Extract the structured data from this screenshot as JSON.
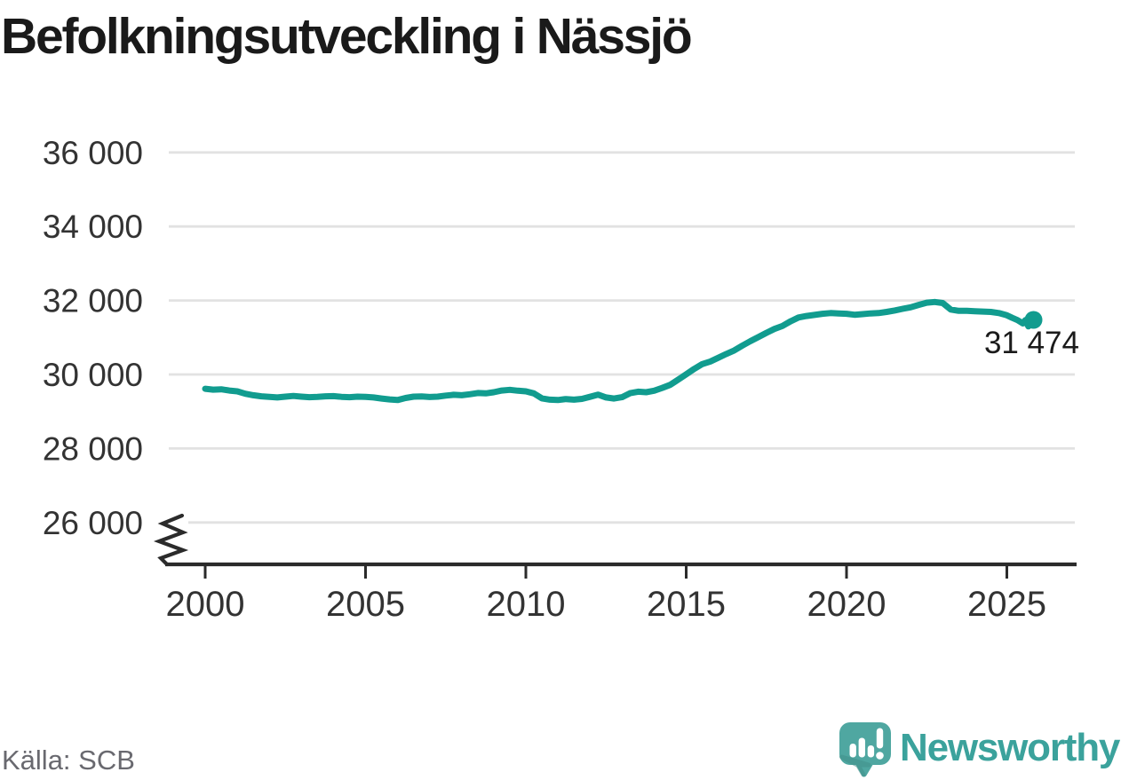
{
  "header": {
    "title": "Befolkningsutveckling i Nässjö"
  },
  "source": {
    "text": "Källa: SCB"
  },
  "branding": {
    "logo_text": "Newsworthy",
    "logo_icon": "newsworthy-speech-bubble-bar-chart-icon"
  },
  "colors": {
    "line": "#119c8f",
    "marker": "#119c8f",
    "grid": "#e2e2e2",
    "axis": "#2b2b2b",
    "tick_label": "#333333",
    "title_text": "#1a1a1a",
    "end_label_text": "#1b1b1b",
    "source_text": "#69696f",
    "logo_teal": "#3ba29c",
    "logo_bubble": "#4fa7a1",
    "logo_bubble_shade": "#41908a"
  },
  "chart_data": {
    "type": "line",
    "title": "Befolkningsutveckling i Nässjö",
    "xlabel": "",
    "ylabel": "",
    "grid": "horizontal",
    "legend": "none",
    "y_axis_break": true,
    "xlim": [
      1999.4,
      2027.3
    ],
    "ylim_displayed": [
      25600,
      36900
    ],
    "x_ticks": [
      2000,
      2005,
      2010,
      2015,
      2020,
      2025
    ],
    "x_tick_labels": [
      "2000",
      "2005",
      "2010",
      "2015",
      "2020",
      "2025"
    ],
    "y_ticks": [
      36000,
      34000,
      32000,
      30000,
      28000,
      26000
    ],
    "y_tick_labels": [
      "36 000",
      "34 000",
      "32 000",
      "30 000",
      "28 000",
      "26 000"
    ],
    "last_value": 31474,
    "last_point_label": "31 474",
    "series": [
      {
        "points": [
          [
            2000.0,
            29615
          ],
          [
            2000.25,
            29590
          ],
          [
            2000.5,
            29600
          ],
          [
            2000.75,
            29565
          ],
          [
            2001.0,
            29545
          ],
          [
            2001.25,
            29480
          ],
          [
            2001.5,
            29440
          ],
          [
            2001.75,
            29410
          ],
          [
            2002.0,
            29395
          ],
          [
            2002.25,
            29380
          ],
          [
            2002.5,
            29400
          ],
          [
            2002.75,
            29420
          ],
          [
            2003.0,
            29400
          ],
          [
            2003.25,
            29385
          ],
          [
            2003.5,
            29395
          ],
          [
            2003.75,
            29410
          ],
          [
            2004.0,
            29415
          ],
          [
            2004.25,
            29395
          ],
          [
            2004.5,
            29385
          ],
          [
            2004.75,
            29400
          ],
          [
            2005.0,
            29395
          ],
          [
            2005.25,
            29380
          ],
          [
            2005.5,
            29350
          ],
          [
            2005.75,
            29325
          ],
          [
            2006.0,
            29310
          ],
          [
            2006.25,
            29365
          ],
          [
            2006.5,
            29400
          ],
          [
            2006.75,
            29405
          ],
          [
            2007.0,
            29390
          ],
          [
            2007.25,
            29400
          ],
          [
            2007.5,
            29430
          ],
          [
            2007.75,
            29450
          ],
          [
            2008.0,
            29440
          ],
          [
            2008.25,
            29465
          ],
          [
            2008.5,
            29500
          ],
          [
            2008.75,
            29490
          ],
          [
            2009.0,
            29520
          ],
          [
            2009.25,
            29565
          ],
          [
            2009.5,
            29585
          ],
          [
            2009.75,
            29560
          ],
          [
            2010.0,
            29545
          ],
          [
            2010.25,
            29490
          ],
          [
            2010.5,
            29355
          ],
          [
            2010.75,
            29320
          ],
          [
            2011.0,
            29310
          ],
          [
            2011.25,
            29335
          ],
          [
            2011.5,
            29320
          ],
          [
            2011.75,
            29340
          ],
          [
            2012.0,
            29395
          ],
          [
            2012.25,
            29455
          ],
          [
            2012.5,
            29380
          ],
          [
            2012.75,
            29350
          ],
          [
            2013.0,
            29385
          ],
          [
            2013.25,
            29495
          ],
          [
            2013.5,
            29535
          ],
          [
            2013.75,
            29520
          ],
          [
            2014.0,
            29560
          ],
          [
            2014.25,
            29635
          ],
          [
            2014.5,
            29720
          ],
          [
            2014.75,
            29860
          ],
          [
            2015.0,
            30005
          ],
          [
            2015.25,
            30150
          ],
          [
            2015.5,
            30280
          ],
          [
            2015.75,
            30350
          ],
          [
            2016.0,
            30450
          ],
          [
            2016.25,
            30555
          ],
          [
            2016.5,
            30650
          ],
          [
            2016.75,
            30780
          ],
          [
            2017.0,
            30900
          ],
          [
            2017.25,
            31010
          ],
          [
            2017.5,
            31125
          ],
          [
            2017.75,
            31230
          ],
          [
            2018.0,
            31310
          ],
          [
            2018.25,
            31435
          ],
          [
            2018.5,
            31540
          ],
          [
            2018.75,
            31580
          ],
          [
            2019.0,
            31610
          ],
          [
            2019.25,
            31640
          ],
          [
            2019.5,
            31660
          ],
          [
            2019.75,
            31650
          ],
          [
            2020.0,
            31640
          ],
          [
            2020.25,
            31615
          ],
          [
            2020.5,
            31630
          ],
          [
            2020.75,
            31650
          ],
          [
            2021.0,
            31660
          ],
          [
            2021.25,
            31690
          ],
          [
            2021.5,
            31730
          ],
          [
            2021.75,
            31775
          ],
          [
            2022.0,
            31815
          ],
          [
            2022.25,
            31880
          ],
          [
            2022.5,
            31940
          ],
          [
            2022.75,
            31960
          ],
          [
            2023.0,
            31930
          ],
          [
            2023.25,
            31755
          ],
          [
            2023.5,
            31720
          ],
          [
            2023.75,
            31720
          ],
          [
            2024.0,
            31710
          ],
          [
            2024.25,
            31700
          ],
          [
            2024.5,
            31690
          ],
          [
            2024.75,
            31660
          ],
          [
            2025.0,
            31600
          ],
          [
            2025.17,
            31530
          ],
          [
            2025.33,
            31470
          ],
          [
            2025.5,
            31380
          ],
          [
            2025.58,
            31470
          ],
          [
            2025.67,
            31300
          ],
          [
            2025.83,
            31474
          ]
        ]
      }
    ]
  }
}
